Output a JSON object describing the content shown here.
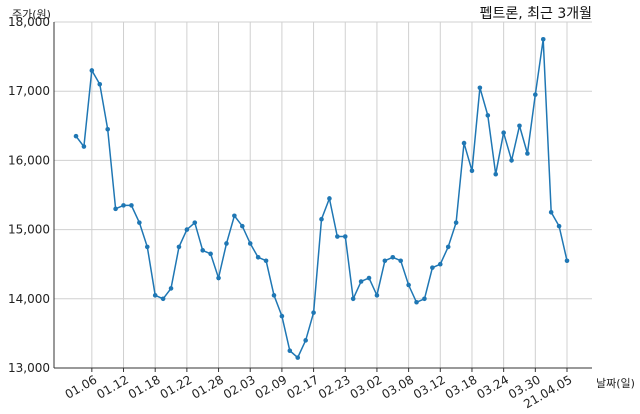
{
  "chart_data": {
    "type": "line",
    "title": "펩트론, 최근 3개월",
    "ylabel": "주가(원)",
    "xlabel": "날짜(일)",
    "ylim": [
      13000,
      18000
    ],
    "yticks": [
      13000,
      14000,
      15000,
      16000,
      17000,
      18000
    ],
    "ytick_labels": [
      "13,000",
      "14,000",
      "15,000",
      "16,000",
      "17,000",
      "18,000"
    ],
    "xticks": [
      {
        "index": 2,
        "label": "01.06"
      },
      {
        "index": 6,
        "label": "01.12"
      },
      {
        "index": 10,
        "label": "01.18"
      },
      {
        "index": 14,
        "label": "01.22"
      },
      {
        "index": 18,
        "label": "01.28"
      },
      {
        "index": 22,
        "label": "02.03"
      },
      {
        "index": 26,
        "label": "02.09"
      },
      {
        "index": 30,
        "label": "02.17"
      },
      {
        "index": 34,
        "label": "02.23"
      },
      {
        "index": 38,
        "label": "03.02"
      },
      {
        "index": 42,
        "label": "03.08"
      },
      {
        "index": 46,
        "label": "03.12"
      },
      {
        "index": 50,
        "label": "03.18"
      },
      {
        "index": 54,
        "label": "03.24"
      },
      {
        "index": 58,
        "label": "03.30"
      },
      {
        "index": 62,
        "label": "21.04.05"
      }
    ],
    "grid": true,
    "series": [
      {
        "color": "#1f77b4",
        "values": [
          16350,
          16200,
          17300,
          17100,
          16450,
          15300,
          15350,
          15350,
          15100,
          14750,
          14050,
          14000,
          14150,
          14750,
          15000,
          15100,
          14700,
          14650,
          14300,
          14800,
          15200,
          15050,
          14800,
          14600,
          14550,
          14050,
          13750,
          13250,
          13150,
          13400,
          13800,
          15150,
          15450,
          14900,
          14900,
          14000,
          14250,
          14300,
          14050,
          14550,
          14600,
          14550,
          14200,
          13950,
          14000,
          14450,
          14500,
          14750,
          15100,
          16250,
          15850,
          17050,
          16650,
          15800,
          16400,
          16000,
          16500,
          16100,
          16950,
          17750,
          15250,
          15050,
          14550
        ]
      }
    ]
  }
}
